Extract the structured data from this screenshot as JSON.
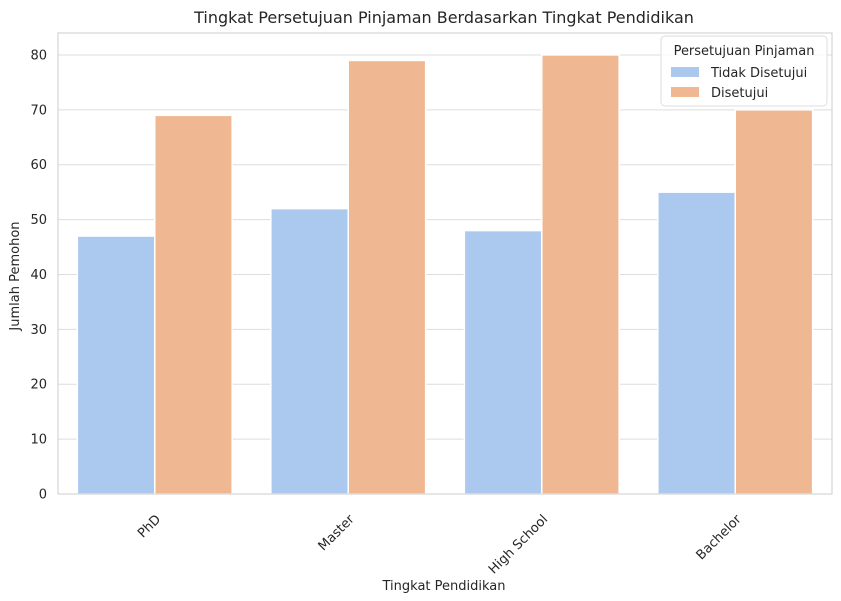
{
  "chart_data": {
    "type": "bar",
    "title": "Tingkat Persetujuan Pinjaman Berdasarkan Tingkat Pendidikan",
    "xlabel": "Tingkat Pendidikan",
    "ylabel": "Jumlah Pemohon",
    "categories": [
      "PhD",
      "Master",
      "High School",
      "Bachelor"
    ],
    "ylim": [
      0,
      84
    ],
    "yticks": [
      "0",
      "10",
      "20",
      "30",
      "40",
      "50",
      "60",
      "70",
      "80"
    ],
    "grid": true,
    "legend": {
      "title": "Persetujuan Pinjaman",
      "placement": "top-right"
    },
    "series": [
      {
        "name": "Tidak Disetujui",
        "color": "#abc9ef",
        "values": [
          47,
          52,
          48,
          55
        ]
      },
      {
        "name": "Disetujui",
        "color": "#f0b892",
        "values": [
          69,
          79,
          80,
          70
        ]
      }
    ]
  }
}
